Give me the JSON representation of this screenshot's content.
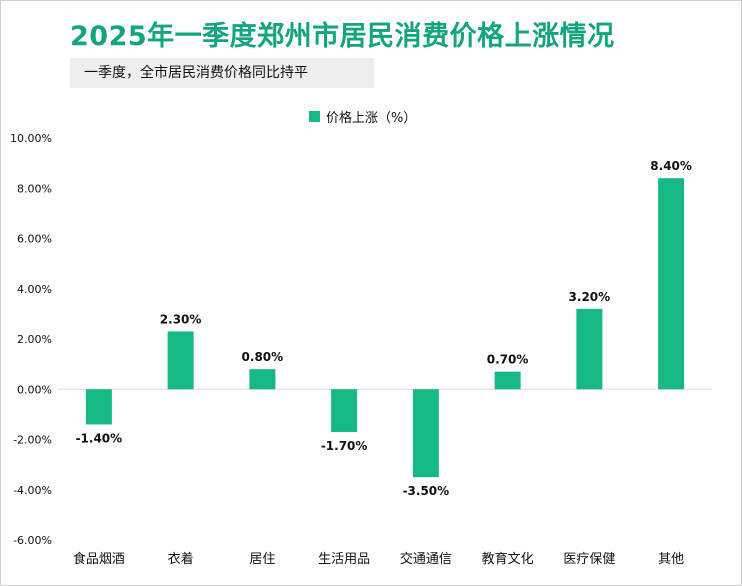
{
  "title": "2025年一季度郑州市居民消费价格上涨情况",
  "subtitle": "一季度，全市居民消费价格同比持平",
  "colors": {
    "title": "#12a57e",
    "bar": "#16b986"
  },
  "chart_data": {
    "type": "bar",
    "categories": [
      "食品烟酒",
      "衣着",
      "居住",
      "生活用品",
      "交通通信",
      "教育文化",
      "医疗保健",
      "其他"
    ],
    "series": [
      {
        "name": "价格上涨（%）",
        "values": [
          -1.4,
          2.3,
          0.8,
          -1.7,
          -3.5,
          0.7,
          3.2,
          8.4
        ]
      }
    ],
    "data_labels": [
      "-1.40%",
      "2.30%",
      "0.80%",
      "-1.70%",
      "-3.50%",
      "0.70%",
      "3.20%",
      "8.40%"
    ],
    "y_ticks": [
      "10.00%",
      "8.00%",
      "6.00%",
      "4.00%",
      "2.00%",
      "0.00%",
      "-2.00%",
      "-4.00%",
      "-6.00%"
    ],
    "ylim": [
      -6,
      10
    ],
    "legend_position": "top-center",
    "grid": false
  }
}
